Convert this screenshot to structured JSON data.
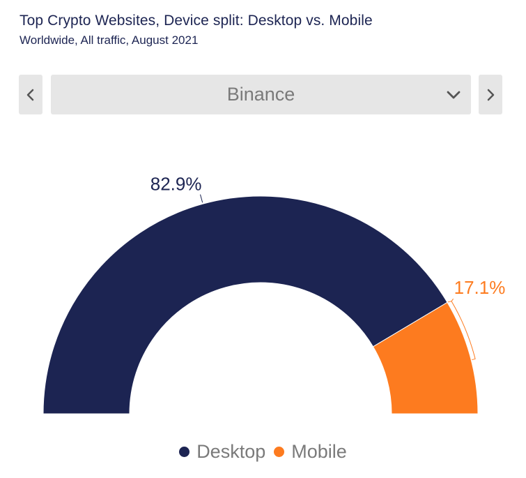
{
  "header": {
    "title": "Top Crypto Websites, Device split: Desktop vs. Mobile",
    "subtitle": "Worldwide, All traffic, August 2021"
  },
  "selector": {
    "value": "Binance",
    "prev_icon": "chevron-left-icon",
    "next_icon": "chevron-right-icon",
    "dropdown_icon": "chevron-down-icon"
  },
  "chart_data": {
    "type": "pie",
    "variant": "semi-donut",
    "categories": [
      "Desktop",
      "Mobile"
    ],
    "values": [
      82.9,
      17.1
    ],
    "labels": [
      "82.9%",
      "17.1%"
    ],
    "colors": [
      "#1c2452",
      "#fd7b1f"
    ],
    "legend": "bottom-center"
  }
}
